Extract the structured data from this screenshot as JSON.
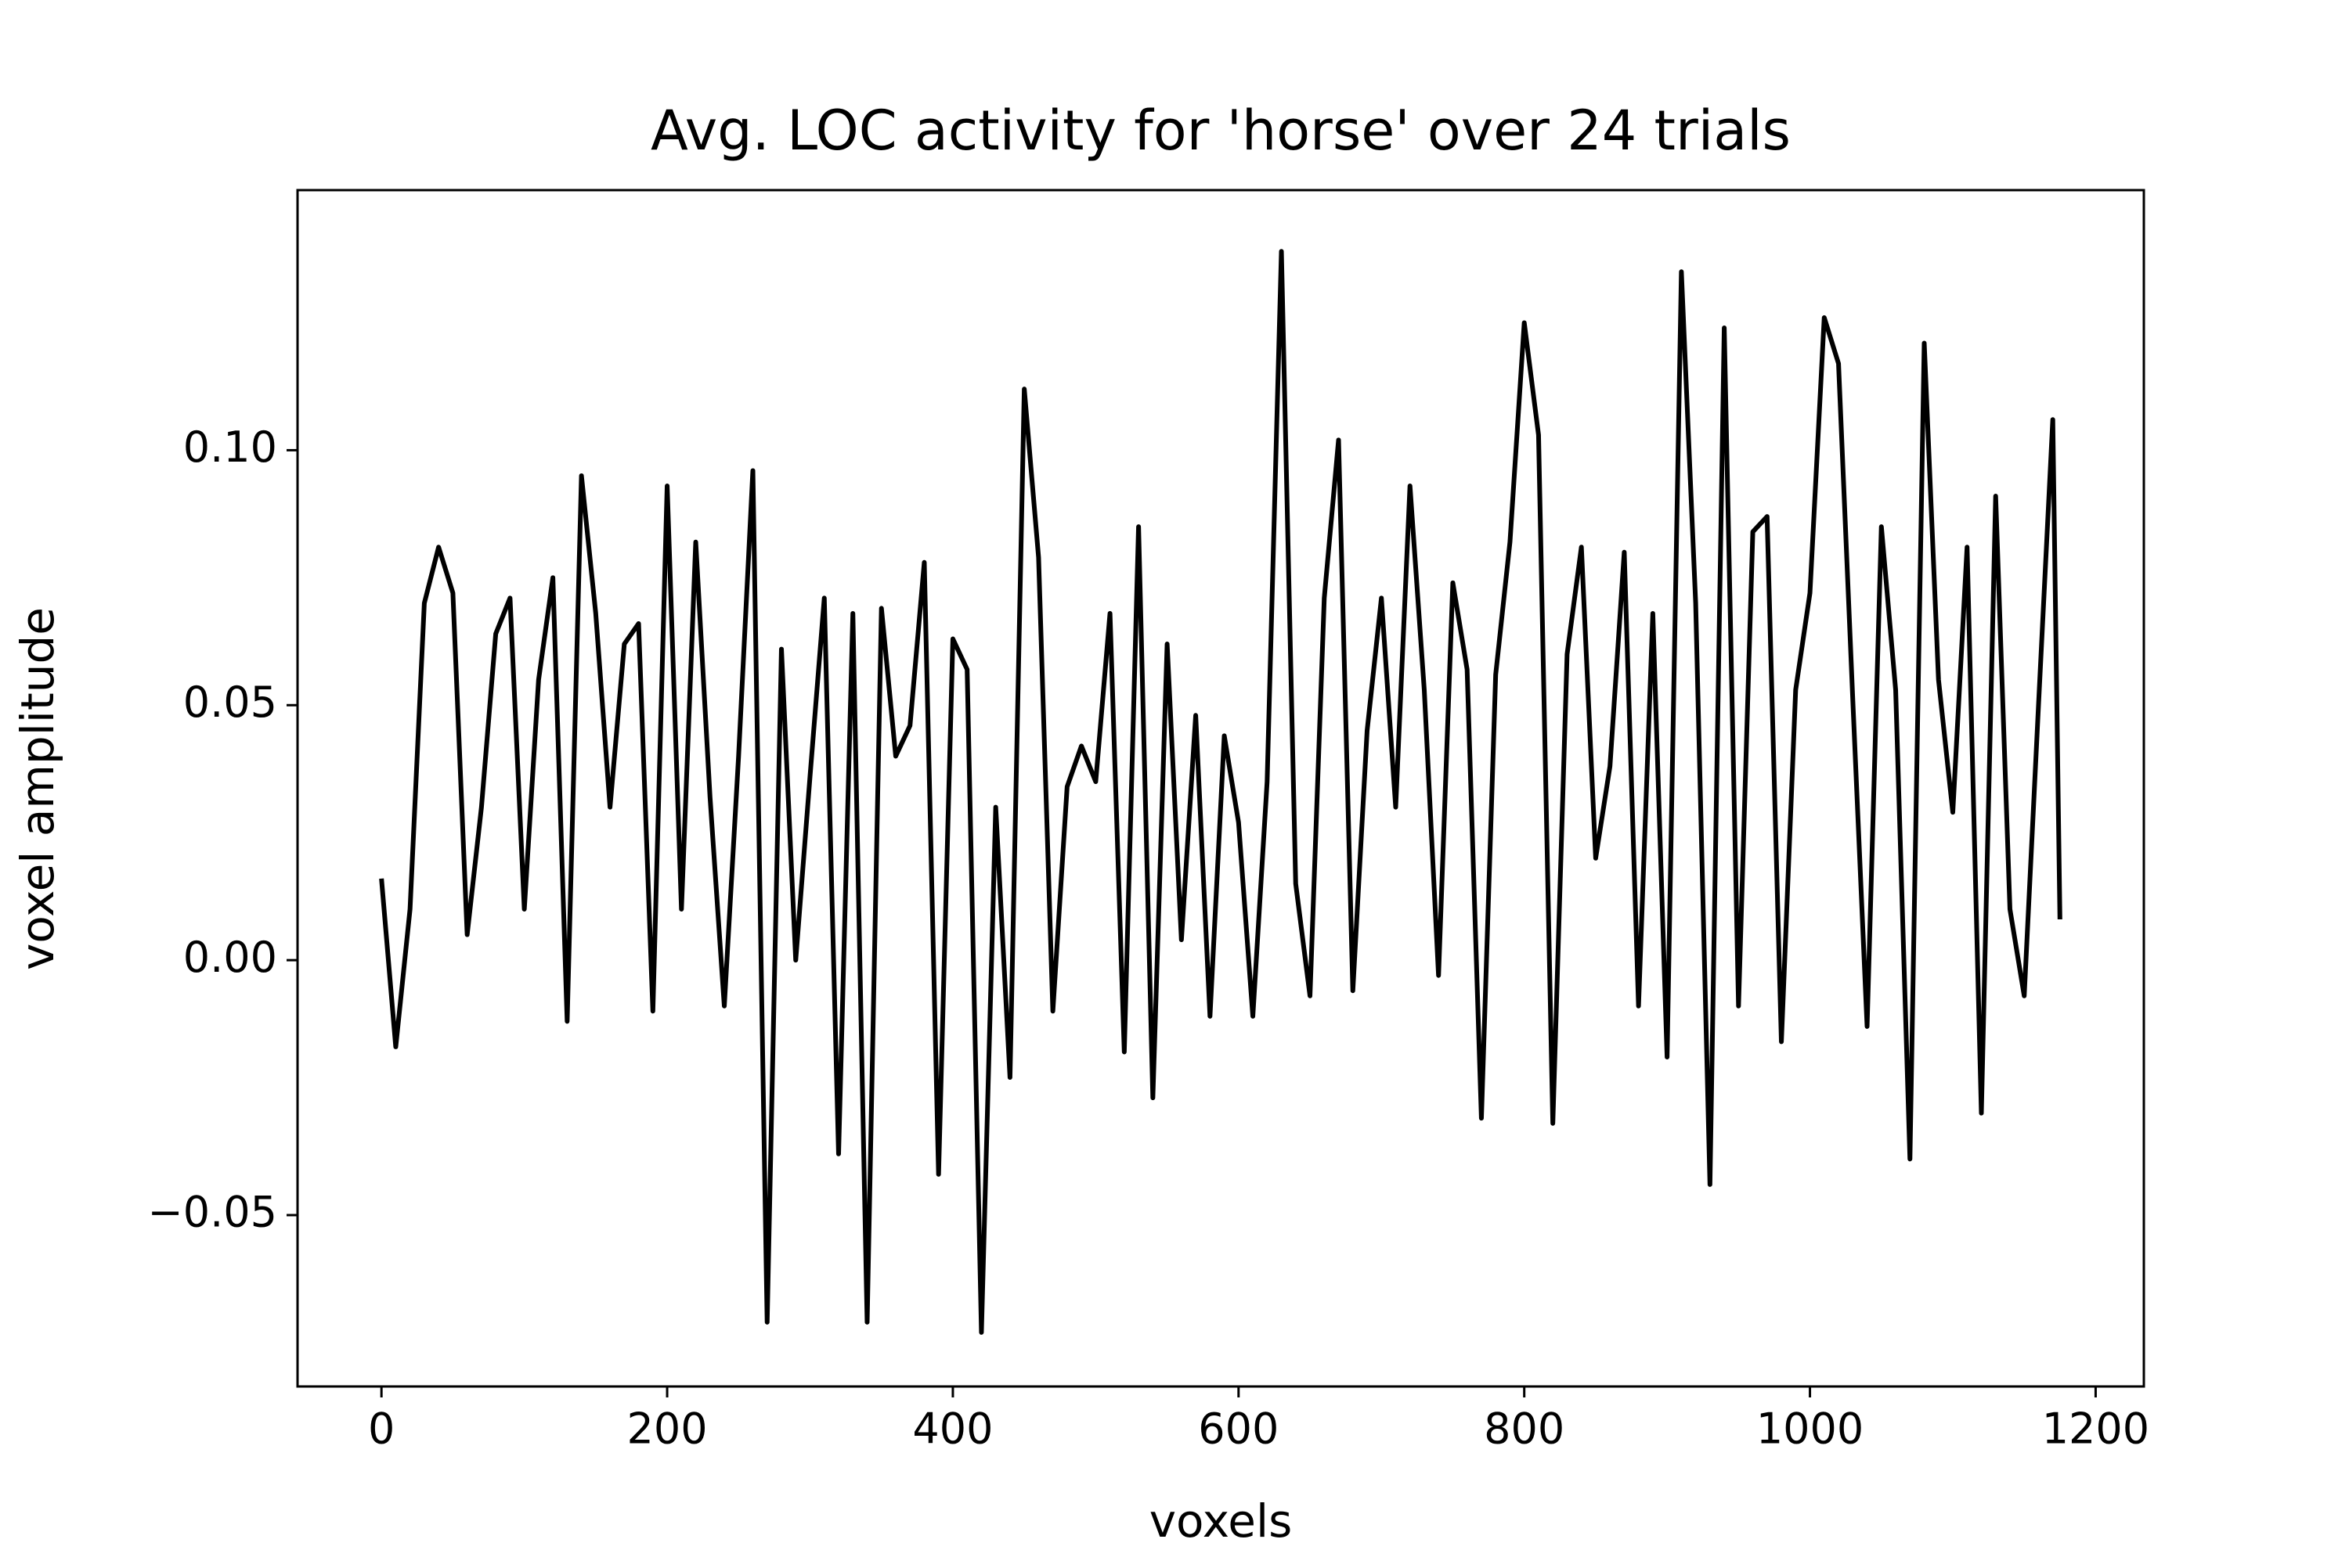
{
  "chart_data": {
    "type": "line",
    "title": "Avg. LOC activity for 'horse' over 24 trials",
    "xlabel": "voxels",
    "ylabel": "voxel amplitude",
    "x": [
      0,
      10,
      20,
      30,
      40,
      50,
      60,
      70,
      80,
      90,
      100,
      110,
      120,
      130,
      140,
      150,
      160,
      170,
      180,
      190,
      200,
      210,
      220,
      230,
      240,
      250,
      260,
      270,
      280,
      290,
      300,
      310,
      320,
      330,
      340,
      350,
      360,
      370,
      380,
      390,
      400,
      410,
      420,
      430,
      440,
      450,
      460,
      470,
      480,
      490,
      500,
      510,
      520,
      530,
      540,
      550,
      560,
      570,
      580,
      590,
      600,
      610,
      620,
      630,
      640,
      650,
      660,
      670,
      680,
      690,
      700,
      710,
      720,
      730,
      740,
      750,
      760,
      770,
      780,
      790,
      800,
      810,
      820,
      830,
      840,
      850,
      860,
      870,
      880,
      890,
      900,
      910,
      920,
      930,
      940,
      950,
      960,
      970,
      980,
      990,
      1000,
      1010,
      1020,
      1030,
      1040,
      1050,
      1060,
      1070,
      1080,
      1090,
      1100,
      1110,
      1120,
      1130,
      1140,
      1150,
      1160,
      1170,
      1175
    ],
    "series": [
      {
        "color": "#000000",
        "values": [
          0.016,
          -0.017,
          0.01,
          0.07,
          0.081,
          0.072,
          0.005,
          0.03,
          0.064,
          0.071,
          0.01,
          0.055,
          0.075,
          -0.012,
          0.095,
          0.068,
          0.03,
          0.062,
          0.066,
          -0.01,
          0.093,
          0.01,
          0.082,
          0.032,
          -0.009,
          0.04,
          0.096,
          -0.071,
          0.061,
          0.0,
          0.036,
          0.071,
          -0.038,
          0.068,
          -0.071,
          0.069,
          0.04,
          0.046,
          0.078,
          -0.042,
          0.063,
          0.057,
          -0.073,
          0.03,
          -0.023,
          0.112,
          0.079,
          -0.01,
          0.034,
          0.042,
          0.035,
          0.068,
          -0.018,
          0.085,
          -0.027,
          0.062,
          0.004,
          0.048,
          -0.011,
          0.044,
          0.027,
          -0.011,
          0.035,
          0.139,
          0.015,
          -0.007,
          0.071,
          0.102,
          -0.006,
          0.045,
          0.071,
          0.03,
          0.093,
          0.053,
          -0.003,
          0.074,
          0.057,
          -0.031,
          0.056,
          0.082,
          0.125,
          0.103,
          -0.032,
          0.06,
          0.081,
          0.02,
          0.038,
          0.08,
          -0.009,
          0.068,
          -0.019,
          0.135,
          0.07,
          -0.044,
          0.124,
          -0.009,
          0.084,
          0.087,
          -0.016,
          0.053,
          0.072,
          0.126,
          0.117,
          0.051,
          -0.013,
          0.085,
          0.053,
          -0.039,
          0.121,
          0.055,
          0.029,
          0.081,
          -0.03,
          0.091,
          0.01,
          -0.007,
          0.05,
          0.106,
          0.008
        ]
      }
    ],
    "xlim": [
      -58.75,
      1233.75
    ],
    "ylim": [
      -0.0836,
      0.151
    ],
    "xticks": [
      0,
      200,
      400,
      600,
      800,
      1000,
      1200
    ],
    "yticks": [
      {
        "value": -0.05,
        "label": "−0.05"
      },
      {
        "value": 0,
        "label": "0.00"
      },
      0.05,
      {
        "value": 0.1,
        "label": "0.10"
      }
    ]
  }
}
